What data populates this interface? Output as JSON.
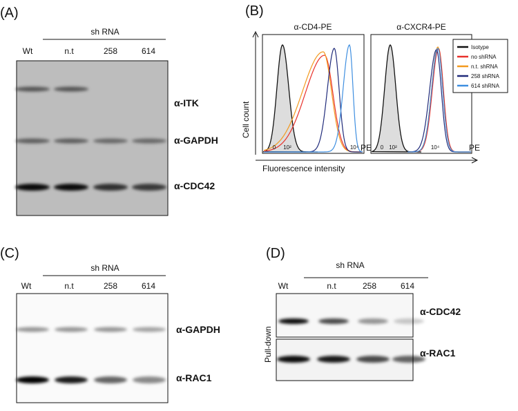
{
  "panels": [
    {
      "label": "(A)",
      "group": "sh RNA",
      "lanes": [
        "Wt",
        "n.t",
        "258",
        "614"
      ],
      "rows": [
        "α-ITK",
        "α-GAPDH",
        "α-CDC42"
      ]
    },
    {
      "label": "(B)",
      "plots": [
        "α-CD4-PE",
        "α-CXCR4-PE"
      ],
      "ylabel": "Cell count",
      "xlabel": "Fluorescence intensity",
      "ticks": [
        "0",
        "10²",
        "10⁴"
      ],
      "axis_unit": "PE",
      "legend": [
        "Isotype",
        "no shRNA",
        "n.t. shRNA",
        "258 shRNA",
        "614 shRNA"
      ]
    },
    {
      "label": "(C)",
      "group": "sh RNA",
      "lanes": [
        "Wt",
        "n.t",
        "258",
        "614"
      ],
      "rows": [
        "α-GAPDH",
        "α-RAC1"
      ]
    },
    {
      "label": "(D)",
      "group": "sh RNA",
      "lanes": [
        "Wt",
        "n.t",
        "258",
        "614"
      ],
      "rows": [
        "α-CDC42",
        "α-RAC1"
      ],
      "side": "Pull-down"
    }
  ]
}
